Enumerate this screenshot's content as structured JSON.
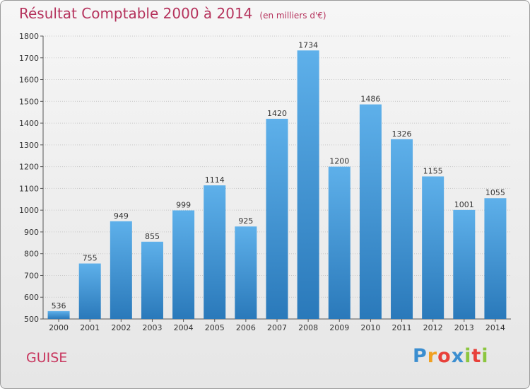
{
  "title": {
    "main": "Résultat Comptable 2000 à 2014",
    "unit": "(en milliers d'€)"
  },
  "city": "GUISE",
  "logo": {
    "text": "Proxiti",
    "letters": [
      "P",
      "r",
      "o",
      "x",
      "i",
      "t",
      "i"
    ],
    "colors": [
      "#3b8ed0",
      "#f0a020",
      "#e8403a",
      "#3b8ed0",
      "#8cc63f",
      "#e8403a",
      "#8cc63f"
    ]
  },
  "colors": {
    "bar_top": "#5eb0ea",
    "bar_bottom": "#2a79ba",
    "title": "#b5325c"
  },
  "chart_data": {
    "type": "bar",
    "title": "Résultat Comptable 2000 à 2014 (en milliers d'€)",
    "xlabel": "",
    "ylabel": "",
    "categories": [
      "2000",
      "2001",
      "2002",
      "2003",
      "2004",
      "2005",
      "2006",
      "2007",
      "2008",
      "2009",
      "2010",
      "2011",
      "2012",
      "2013",
      "2014"
    ],
    "values": [
      536,
      755,
      949,
      855,
      999,
      1114,
      925,
      1420,
      1734,
      1200,
      1486,
      1326,
      1155,
      1001,
      1055
    ],
    "ylim": [
      500,
      1800
    ],
    "yticks": [
      500,
      600,
      700,
      800,
      900,
      1000,
      1100,
      1200,
      1300,
      1400,
      1500,
      1600,
      1700,
      1800
    ],
    "grid": true,
    "legend": "none"
  }
}
